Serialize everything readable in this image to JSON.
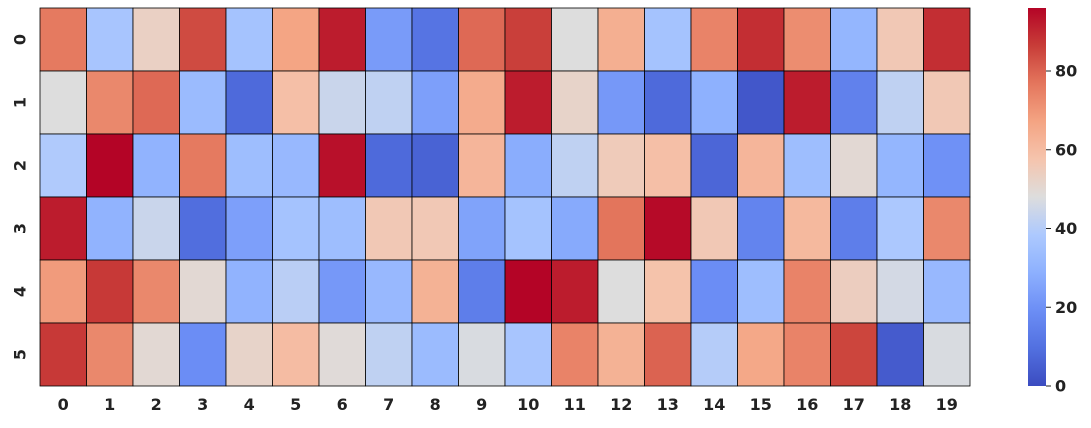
{
  "chart_data": {
    "type": "heatmap",
    "title": "",
    "xlabel": "",
    "ylabel": "",
    "x_labels": [
      "0",
      "1",
      "2",
      "3",
      "4",
      "5",
      "6",
      "7",
      "8",
      "9",
      "10",
      "11",
      "12",
      "13",
      "14",
      "15",
      "16",
      "17",
      "18",
      "19"
    ],
    "y_labels": [
      "0",
      "1",
      "2",
      "3",
      "4",
      "5"
    ],
    "values": [
      [
        76,
        37,
        53,
        84,
        36,
        67,
        92,
        23,
        11,
        79,
        86,
        48,
        64,
        36,
        74,
        89,
        72,
        31,
        56,
        89
      ],
      [
        48,
        73,
        79,
        33,
        8,
        59,
        44,
        42,
        24,
        65,
        92,
        52,
        22,
        8,
        29,
        3,
        92,
        15,
        42,
        56
      ],
      [
        39,
        96,
        30,
        76,
        34,
        32,
        94,
        8,
        6,
        62,
        28,
        42,
        55,
        59,
        7,
        62,
        34,
        50,
        31,
        20
      ],
      [
        92,
        30,
        44,
        9,
        24,
        36,
        34,
        56,
        56,
        25,
        36,
        27,
        77,
        95,
        56,
        16,
        61,
        14,
        38,
        73
      ],
      [
        69,
        87,
        73,
        50,
        30,
        41,
        22,
        32,
        63,
        14,
        96,
        92,
        48,
        58,
        19,
        34,
        74,
        54,
        46,
        32
      ],
      [
        87,
        73,
        50,
        19,
        52,
        60,
        49,
        42,
        33,
        47,
        37,
        74,
        63,
        80,
        40,
        66,
        74,
        85,
        4,
        47
      ]
    ],
    "colormap": "coolwarm",
    "vmin": 0,
    "vmax": 96,
    "colorbar_ticks": [
      0,
      20,
      40,
      60,
      80
    ]
  }
}
